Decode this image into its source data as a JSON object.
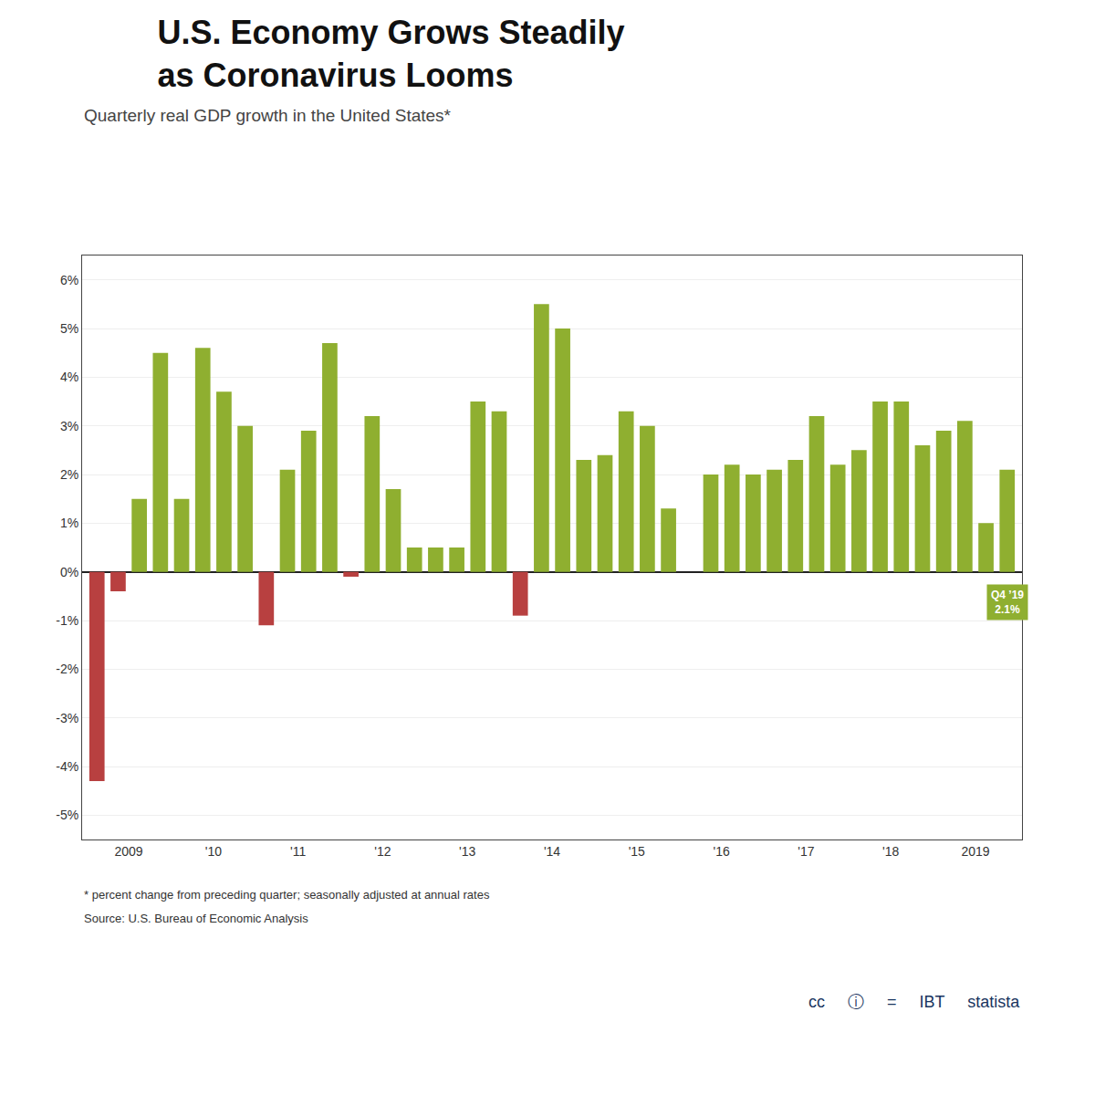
{
  "chart_data": {
    "type": "bar",
    "title": "U.S. Economy Grows Steadily\nas Coronavirus Looms",
    "subtitle": "Quarterly real GDP growth in the United States*",
    "notes": [
      "* percent change from preceding quarter; seasonally adjusted at annual rates",
      "Source: U.S. Bureau of Economic Analysis"
    ],
    "credits": [
      "cc",
      "ⓘ",
      "=",
      "IBT",
      "statista"
    ],
    "categories": [
      "2009",
      null,
      null,
      null,
      "'10",
      null,
      null,
      null,
      "'11",
      null,
      null,
      null,
      "'12",
      null,
      null,
      null,
      "'13",
      null,
      null,
      null,
      "'14",
      null,
      null,
      null,
      "'15",
      null,
      null,
      null,
      "'16",
      null,
      null,
      null,
      "'17",
      null,
      null,
      null,
      "'18",
      null,
      null,
      null,
      "2019",
      null,
      null,
      null
    ],
    "values": [
      -4.3,
      -0.4,
      1.5,
      4.5,
      1.5,
      4.6,
      3.7,
      3.0,
      -1.1,
      2.1,
      2.9,
      4.7,
      -0.1,
      3.2,
      1.7,
      0.5,
      0.5,
      0.5,
      3.5,
      3.3,
      -0.9,
      5.5,
      5.0,
      2.3,
      2.4,
      3.3,
      3.0,
      1.3,
      0.0,
      2.0,
      2.2,
      2.0,
      2.1,
      2.3,
      3.2,
      2.2,
      2.5,
      3.5,
      3.5,
      2.6,
      2.9,
      3.1,
      1.0,
      2.1
    ],
    "colors": [
      "#b84040",
      "#b84040",
      "#8faf30",
      "#8faf30",
      "#8faf30",
      "#8faf30",
      "#8faf30",
      "#8faf30",
      "#b84040",
      "#8faf30",
      "#8faf30",
      "#8faf30",
      "#b84040",
      "#8faf30",
      "#8faf30",
      "#8faf30",
      "#8faf30",
      "#8faf30",
      "#8faf30",
      "#8faf30",
      "#b84040",
      "#8faf30",
      "#8faf30",
      "#8faf30",
      "#8faf30",
      "#8faf30",
      "#8faf30",
      "#8faf30",
      "#8faf30",
      "#8faf30",
      "#8faf30",
      "#8faf30",
      "#8faf30",
      "#8faf30",
      "#8faf30",
      "#8faf30",
      "#8faf30",
      "#8faf30",
      "#8faf30",
      "#8faf30",
      "#8faf30",
      "#8faf30",
      "#8faf30",
      "#8faf30"
    ],
    "ylim": [
      -5.5,
      6.5
    ],
    "yticks": [
      {
        "value": -5,
        "label": "-5%"
      },
      {
        "value": -4,
        "label": "-4%"
      },
      {
        "value": -3,
        "label": "-3%"
      },
      {
        "value": -2,
        "label": "-2%"
      },
      {
        "value": -1,
        "label": "-1%"
      },
      {
        "value": 0,
        "label": "0%"
      },
      {
        "value": 1,
        "label": "1%"
      },
      {
        "value": 2,
        "label": "2%"
      },
      {
        "value": 3,
        "label": "3%"
      },
      {
        "value": 4,
        "label": "4%"
      },
      {
        "value": 5,
        "label": "5%"
      },
      {
        "value": 6,
        "label": "6%"
      }
    ],
    "grid": true,
    "annotation": "Q4 ’19\n2.1%"
  }
}
